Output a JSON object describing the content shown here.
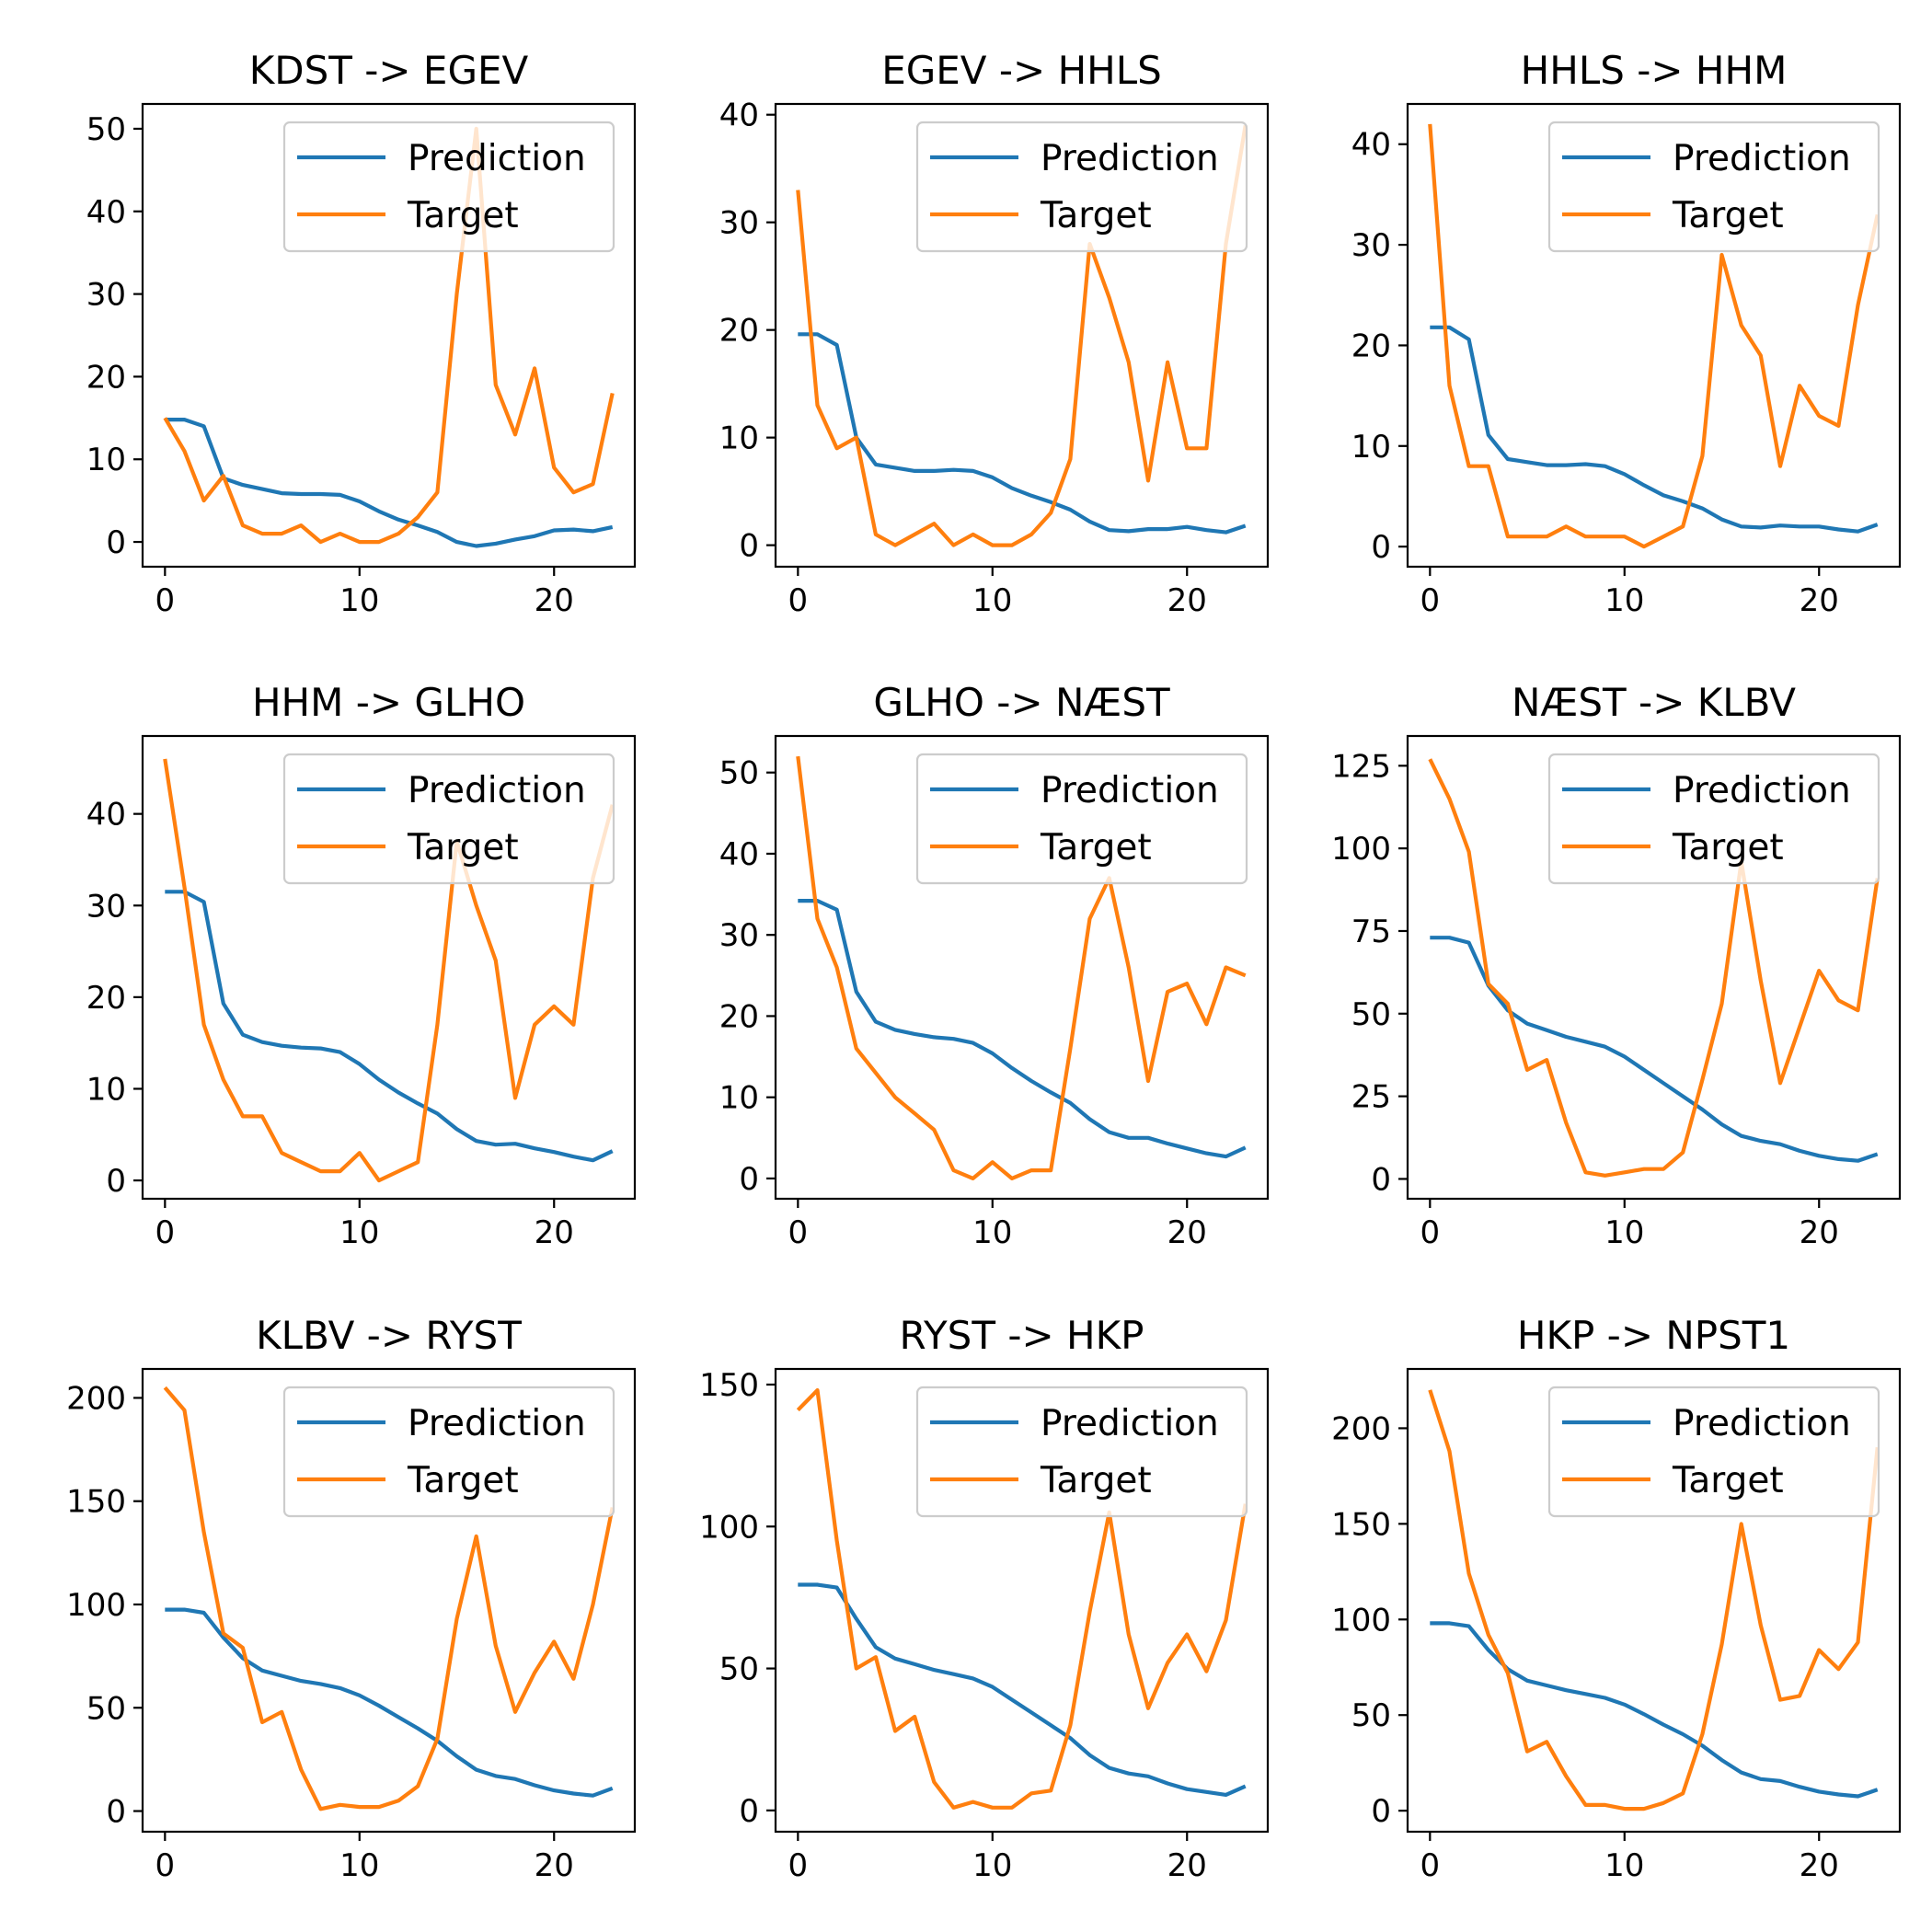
{
  "colors": {
    "prediction": "#1f77b4",
    "target": "#ff7f0e"
  },
  "chart_data": [
    {
      "type": "line",
      "title": "KDST -> EGEV",
      "xlim": [
        -1.15,
        24.15
      ],
      "ylim": [
        -3,
        53
      ],
      "xticks": [
        0,
        10,
        20
      ],
      "yticks": [
        0,
        10,
        20,
        30,
        40,
        50
      ],
      "legend": "top-right",
      "x": [
        0,
        1,
        2,
        3,
        4,
        5,
        6,
        7,
        8,
        9,
        10,
        11,
        12,
        13,
        14,
        15,
        16,
        17,
        18,
        19,
        20,
        21,
        22,
        23
      ],
      "series": [
        {
          "name": "Prediction",
          "values": [
            14.8,
            14.8,
            14.0,
            7.7,
            6.9,
            6.4,
            5.9,
            5.8,
            5.8,
            5.7,
            4.9,
            3.7,
            2.7,
            2.0,
            1.2,
            0.0,
            -0.5,
            -0.2,
            0.3,
            0.7,
            1.4,
            1.5,
            1.3,
            1.8
          ]
        },
        {
          "name": "Target",
          "values": [
            15,
            11,
            5,
            8,
            2,
            1,
            1,
            2,
            0,
            1,
            0,
            0,
            1,
            3,
            6,
            30,
            50,
            19,
            13,
            21,
            9,
            6,
            7,
            18
          ]
        }
      ]
    },
    {
      "type": "line",
      "title": "EGEV -> HHLS",
      "xlim": [
        -1.15,
        24.15
      ],
      "ylim": [
        -2,
        41
      ],
      "xticks": [
        0,
        10,
        20
      ],
      "yticks": [
        0,
        10,
        20,
        30,
        40
      ],
      "legend": "top-right",
      "x": [
        0,
        1,
        2,
        3,
        4,
        5,
        6,
        7,
        8,
        9,
        10,
        11,
        12,
        13,
        14,
        15,
        16,
        17,
        18,
        19,
        20,
        21,
        22,
        23
      ],
      "series": [
        {
          "name": "Prediction",
          "values": [
            19.6,
            19.6,
            18.6,
            10.0,
            7.5,
            7.2,
            6.9,
            6.9,
            7.0,
            6.9,
            6.3,
            5.3,
            4.6,
            4.0,
            3.3,
            2.2,
            1.4,
            1.3,
            1.5,
            1.5,
            1.7,
            1.4,
            1.2,
            1.8
          ]
        },
        {
          "name": "Target",
          "values": [
            33,
            13,
            9,
            10,
            1,
            0,
            1,
            2,
            0,
            1,
            0,
            0,
            1,
            3,
            8,
            28,
            23,
            17,
            6,
            17,
            9,
            9,
            28,
            39
          ]
        }
      ]
    },
    {
      "type": "line",
      "title": "HHLS -> HHM",
      "xlim": [
        -1.15,
        24.15
      ],
      "ylim": [
        -2,
        44
      ],
      "xticks": [
        0,
        10,
        20
      ],
      "yticks": [
        0,
        10,
        20,
        30,
        40
      ],
      "legend": "top-right",
      "x": [
        0,
        1,
        2,
        3,
        4,
        5,
        6,
        7,
        8,
        9,
        10,
        11,
        12,
        13,
        14,
        15,
        16,
        17,
        18,
        19,
        20,
        21,
        22,
        23
      ],
      "series": [
        {
          "name": "Prediction",
          "values": [
            21.8,
            21.8,
            20.6,
            11.1,
            8.7,
            8.4,
            8.1,
            8.1,
            8.2,
            8.0,
            7.2,
            6.1,
            5.1,
            4.5,
            3.8,
            2.7,
            2.0,
            1.9,
            2.1,
            2.0,
            2.0,
            1.7,
            1.5,
            2.2
          ]
        },
        {
          "name": "Target",
          "values": [
            42,
            16,
            8,
            8,
            1,
            1,
            1,
            2,
            1,
            1,
            1,
            0,
            1,
            2,
            9,
            29,
            22,
            19,
            8,
            16,
            13,
            12,
            24,
            33
          ]
        }
      ]
    },
    {
      "type": "line",
      "title": "HHM -> GLHO",
      "xlim": [
        -1.15,
        24.15
      ],
      "ylim": [
        -2,
        48.5
      ],
      "xticks": [
        0,
        10,
        20
      ],
      "yticks": [
        0,
        10,
        20,
        30,
        40
      ],
      "legend": "top-right",
      "x": [
        0,
        1,
        2,
        3,
        4,
        5,
        6,
        7,
        8,
        9,
        10,
        11,
        12,
        13,
        14,
        15,
        16,
        17,
        18,
        19,
        20,
        21,
        22,
        23
      ],
      "series": [
        {
          "name": "Prediction",
          "values": [
            31.5,
            31.5,
            30.4,
            19.3,
            15.9,
            15.1,
            14.7,
            14.5,
            14.4,
            14.0,
            12.7,
            11.0,
            9.6,
            8.4,
            7.3,
            5.6,
            4.3,
            3.9,
            4.0,
            3.5,
            3.1,
            2.6,
            2.2,
            3.2
          ]
        },
        {
          "name": "Target",
          "values": [
            46,
            32,
            17,
            11,
            7,
            7,
            3,
            2,
            1,
            1,
            3,
            0,
            1,
            2,
            17,
            37,
            30,
            24,
            9,
            17,
            19,
            17,
            33,
            41
          ]
        }
      ]
    },
    {
      "type": "line",
      "title": "GLHO -> NÆST",
      "xlim": [
        -1.15,
        24.15
      ],
      "ylim": [
        -2.5,
        54.5
      ],
      "xticks": [
        0,
        10,
        20
      ],
      "yticks": [
        0,
        10,
        20,
        30,
        40,
        50
      ],
      "legend": "top-right",
      "x": [
        0,
        1,
        2,
        3,
        4,
        5,
        6,
        7,
        8,
        9,
        10,
        11,
        12,
        13,
        14,
        15,
        16,
        17,
        18,
        19,
        20,
        21,
        22,
        23
      ],
      "series": [
        {
          "name": "Prediction",
          "values": [
            34.2,
            34.2,
            33.1,
            23.0,
            19.3,
            18.3,
            17.8,
            17.4,
            17.2,
            16.7,
            15.4,
            13.6,
            12.0,
            10.6,
            9.3,
            7.3,
            5.7,
            5.0,
            5.0,
            4.3,
            3.7,
            3.1,
            2.7,
            3.8
          ]
        },
        {
          "name": "Target",
          "values": [
            52,
            32,
            26,
            16,
            13,
            10,
            8,
            6,
            1,
            0,
            2,
            0,
            1,
            1,
            16,
            32,
            37,
            26,
            12,
            23,
            24,
            19,
            26,
            25
          ]
        }
      ]
    },
    {
      "type": "line",
      "title": "NÆST -> KLBV",
      "xlim": [
        -1.15,
        24.15
      ],
      "ylim": [
        -6,
        134
      ],
      "xticks": [
        0,
        10,
        20
      ],
      "yticks": [
        0,
        25,
        50,
        75,
        100,
        125
      ],
      "legend": "top-right",
      "x": [
        0,
        1,
        2,
        3,
        4,
        5,
        6,
        7,
        8,
        9,
        10,
        11,
        12,
        13,
        14,
        15,
        16,
        17,
        18,
        19,
        20,
        21,
        22,
        23
      ],
      "series": [
        {
          "name": "Prediction",
          "values": [
            73,
            73,
            71.5,
            58.5,
            51,
            47,
            45,
            43,
            41.5,
            40,
            37,
            33,
            29,
            25,
            21,
            16.5,
            13,
            11.5,
            10.5,
            8.5,
            7,
            6,
            5.5,
            7.5
          ]
        },
        {
          "name": "Target",
          "values": [
            127,
            115,
            99,
            59,
            53,
            33,
            36,
            17,
            2,
            1,
            2,
            3,
            3,
            8,
            30,
            53,
            96,
            60,
            29,
            46,
            63,
            54,
            51,
            91
          ]
        }
      ]
    },
    {
      "type": "line",
      "title": "KLBV -> RYST",
      "xlim": [
        -1.15,
        24.15
      ],
      "ylim": [
        -10,
        214
      ],
      "xticks": [
        0,
        10,
        20
      ],
      "yticks": [
        0,
        50,
        100,
        150,
        200
      ],
      "legend": "top-right",
      "x": [
        0,
        1,
        2,
        3,
        4,
        5,
        6,
        7,
        8,
        9,
        10,
        11,
        12,
        13,
        14,
        15,
        16,
        17,
        18,
        19,
        20,
        21,
        22,
        23
      ],
      "series": [
        {
          "name": "Prediction",
          "values": [
            97.5,
            97.5,
            96,
            84,
            74,
            68,
            65.5,
            63,
            61.5,
            59.5,
            56,
            51,
            45.5,
            40,
            34,
            26.5,
            20,
            17,
            15.5,
            12.5,
            10,
            8.5,
            7.5,
            11
          ]
        },
        {
          "name": "Target",
          "values": [
            205,
            194,
            135,
            86,
            79,
            43,
            48,
            20,
            1,
            3,
            2,
            2,
            5,
            12,
            35,
            93,
            133,
            80,
            48,
            67,
            82,
            64,
            100,
            147
          ]
        }
      ]
    },
    {
      "type": "line",
      "title": "RYST -> HKP",
      "xlim": [
        -1.15,
        24.15
      ],
      "ylim": [
        -7.5,
        155.5
      ],
      "xticks": [
        0,
        10,
        20
      ],
      "yticks": [
        0,
        50,
        100,
        150
      ],
      "legend": "top-right",
      "x": [
        0,
        1,
        2,
        3,
        4,
        5,
        6,
        7,
        8,
        9,
        10,
        11,
        12,
        13,
        14,
        15,
        16,
        17,
        18,
        19,
        20,
        21,
        22,
        23
      ],
      "series": [
        {
          "name": "Prediction",
          "values": [
            79.5,
            79.5,
            78.5,
            67.5,
            57.5,
            53.5,
            51.5,
            49.5,
            48,
            46.5,
            43.5,
            39,
            34.5,
            30,
            25.5,
            19.5,
            15,
            13,
            12,
            9.5,
            7.5,
            6.5,
            5.5,
            8.5
          ]
        },
        {
          "name": "Target",
          "values": [
            141,
            148,
            95,
            50,
            54,
            28,
            33,
            10,
            1,
            3,
            1,
            1,
            6,
            7,
            30,
            70,
            105,
            62,
            36,
            52,
            62,
            49,
            67,
            108
          ]
        }
      ]
    },
    {
      "type": "line",
      "title": "HKP -> NPST1",
      "xlim": [
        -1.15,
        24.15
      ],
      "ylim": [
        -11,
        231
      ],
      "xticks": [
        0,
        10,
        20
      ],
      "yticks": [
        0,
        50,
        100,
        150,
        200
      ],
      "legend": "top-right",
      "x": [
        0,
        1,
        2,
        3,
        4,
        5,
        6,
        7,
        8,
        9,
        10,
        11,
        12,
        13,
        14,
        15,
        16,
        17,
        18,
        19,
        20,
        21,
        22,
        23
      ],
      "series": [
        {
          "name": "Prediction",
          "values": [
            98,
            98,
            96.5,
            84,
            74,
            68,
            65.5,
            63,
            61,
            59,
            55.5,
            50.5,
            45,
            40,
            34,
            26.5,
            20,
            16.5,
            15.5,
            12.5,
            10,
            8.5,
            7.5,
            11
          ]
        },
        {
          "name": "Target",
          "values": [
            220,
            188,
            124,
            92,
            72,
            31,
            36,
            18,
            3,
            3,
            1,
            1,
            4,
            9,
            40,
            87,
            150,
            97,
            58,
            60,
            84,
            74,
            88,
            190
          ]
        }
      ]
    }
  ]
}
